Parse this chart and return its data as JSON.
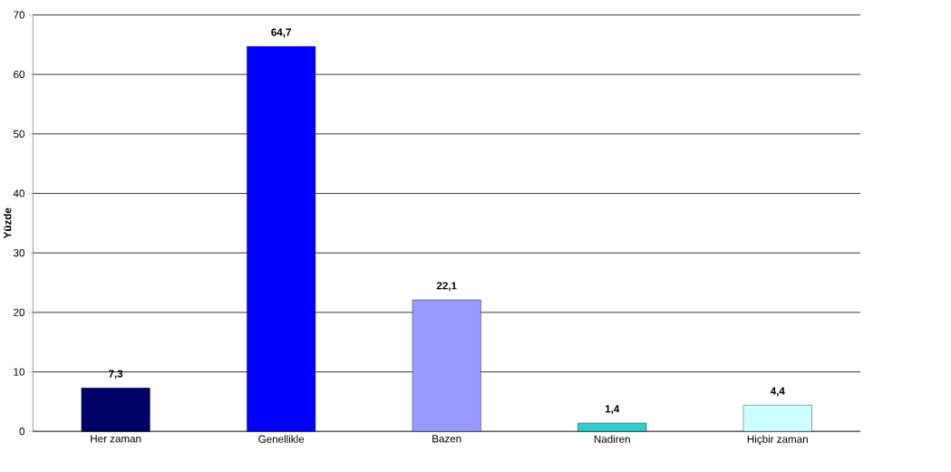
{
  "chart_data": {
    "type": "bar",
    "ylabel": "Yüzde",
    "categories": [
      "Her zaman",
      "Genellikle",
      "Bazen",
      "Nadiren",
      "Hiçbir zaman"
    ],
    "values": [
      7.3,
      64.7,
      22.1,
      1.4,
      4.4
    ],
    "value_labels": [
      "7,3",
      "64,7",
      "22,1",
      "1,4",
      "4,4"
    ],
    "colors": [
      "#000066",
      "#0000ff",
      "#9999ff",
      "#33cccc",
      "#ccffff"
    ],
    "ylim": [
      0,
      70
    ],
    "yticks": [
      0,
      10,
      20,
      30,
      40,
      50,
      60,
      70
    ],
    "grid": "y"
  }
}
